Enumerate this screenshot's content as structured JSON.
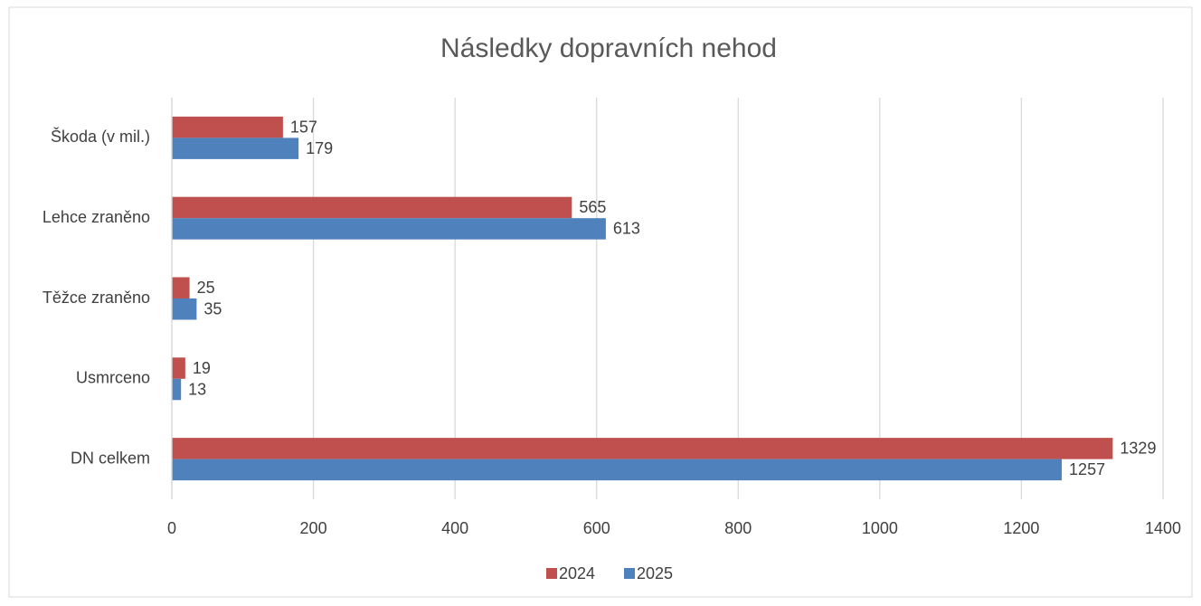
{
  "chart_data": {
    "type": "bar",
    "orientation": "horizontal",
    "title": "Následky dopravních nehod",
    "categories": [
      "DN celkem",
      "Usmrceno",
      "Těžce zraněno",
      "Lehce zraněno",
      "Škoda (v mil.)"
    ],
    "series": [
      {
        "name": "2024",
        "color": "#c0504d",
        "values": [
          1329,
          19,
          25,
          565,
          157
        ]
      },
      {
        "name": "2025",
        "color": "#4f81bd",
        "values": [
          1257,
          13,
          35,
          613,
          179
        ]
      }
    ],
    "xlim": [
      0,
      1400
    ],
    "xticks": [
      0,
      200,
      400,
      600,
      800,
      1000,
      1200,
      1400
    ],
    "grid": true,
    "legend": "bottom"
  }
}
